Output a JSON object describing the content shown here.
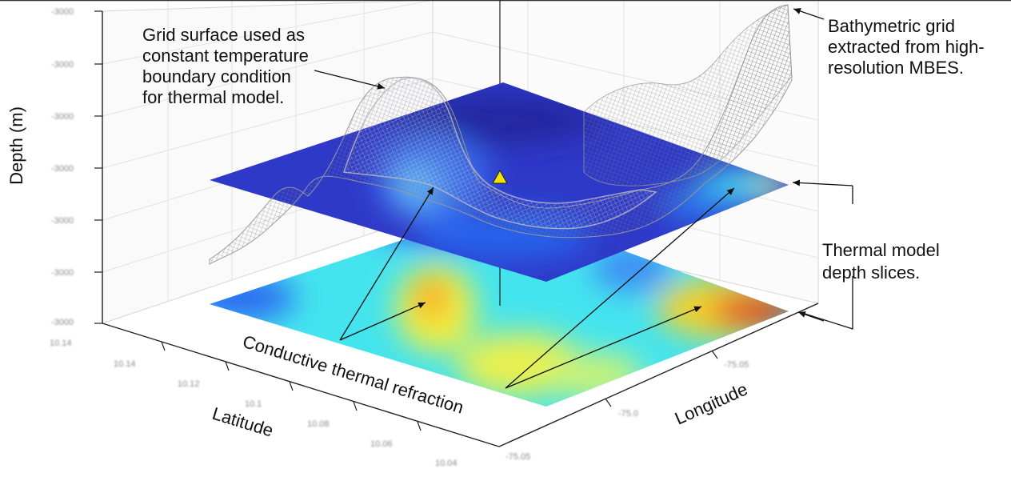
{
  "figure": {
    "colors": {
      "top_slice": "#2d3fd0",
      "bottom_low": "#2b6af0",
      "bottom_mid": "#3fe6ee",
      "bottom_high": "#f2ef3a",
      "bottom_hot": "#c3282a",
      "wire_mesh": "#8c8c8c",
      "marker": "#f2e200",
      "axis": "#222222",
      "grid": "#dcdcdc"
    },
    "axis_titles": {
      "depth": "Depth (m)",
      "latitude": "Latitude",
      "longitude": "Longitude"
    },
    "depth_ticks": [
      "-3000",
      "-3000",
      "-3000",
      "-3000",
      "-3000",
      "-3000",
      "-3000"
    ],
    "latitude_ticks": [
      "10.14",
      "10.14",
      "10.12",
      "10.1",
      "10.08",
      "10.06",
      "10.04"
    ],
    "longitude_ticks": [
      "-75.05",
      "-75.0",
      "-75.05"
    ],
    "annotations": {
      "grid_surface": [
        "Grid surface used as",
        "constant temperature",
        "boundary condition",
        "for thermal model."
      ],
      "bathymetric": [
        "Bathymetric grid",
        "extracted from high-",
        "resolution MBES."
      ],
      "depth_slices": [
        "Thermal model",
        "depth slices."
      ],
      "conductive": "Conductive thermal refraction"
    },
    "icons": [
      "station-marker-icon"
    ]
  }
}
